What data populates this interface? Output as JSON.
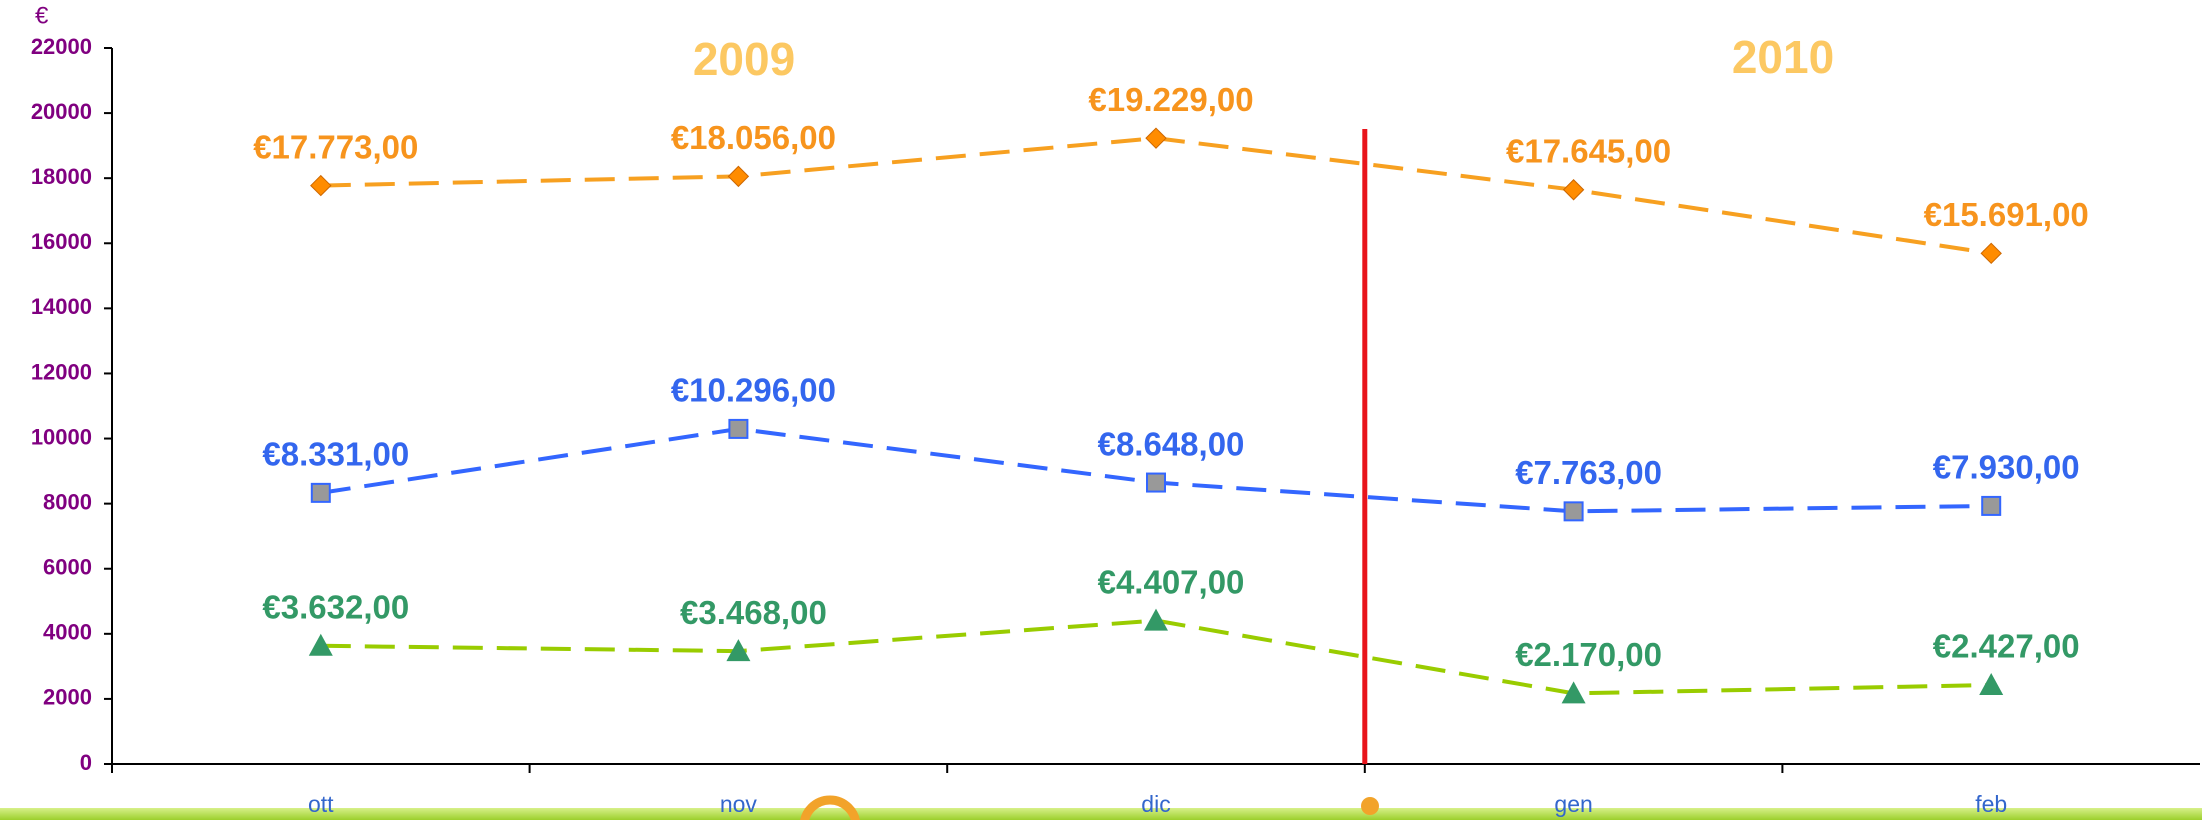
{
  "chart_data": {
    "type": "line",
    "y_label": "€",
    "annotations": [
      "2009",
      "2010"
    ],
    "categories": [
      "ott",
      "nov",
      "dic",
      "gen",
      "feb"
    ],
    "series": [
      {
        "color": "#f7a020",
        "marker": "diamond",
        "marker_color": "#ff8c00",
        "label_color": "#f7941d",
        "values": [
          17773,
          18056,
          19229,
          17645,
          15691
        ],
        "value_labels": [
          "€17.773,00",
          "€18.056,00",
          "€19.229,00",
          "€17.645,00",
          "€15.691,00"
        ]
      },
      {
        "color": "#3366ff",
        "marker": "square",
        "marker_color": "#999999",
        "label_color": "#3366ee",
        "values": [
          8331,
          10296,
          8648,
          7763,
          7930
        ],
        "value_labels": [
          "€8.331,00",
          "€10.296,00",
          "€8.648,00",
          "€7.763,00",
          "€7.930,00"
        ]
      },
      {
        "color": "#99cc00",
        "marker": "triangle",
        "marker_color": "#339966",
        "label_color": "#339966",
        "values": [
          3632,
          3468,
          4407,
          2170,
          2427
        ],
        "value_labels": [
          "€3.632,00",
          "€3.468,00",
          "€4.407,00",
          "€2.170,00",
          "€2.427,00"
        ]
      }
    ],
    "ylim": [
      0,
      22000
    ],
    "yticks": [
      0,
      2000,
      4000,
      6000,
      8000,
      10000,
      12000,
      14000,
      16000,
      18000,
      20000,
      22000
    ],
    "grid": false
  }
}
